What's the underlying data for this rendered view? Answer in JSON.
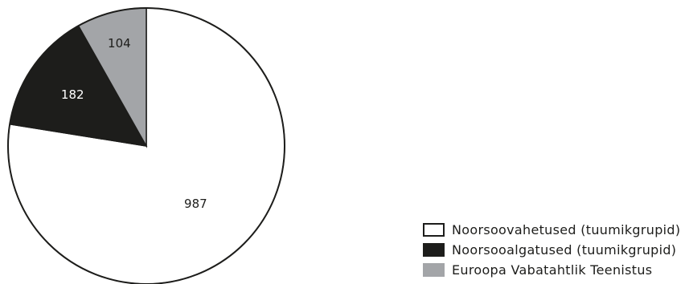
{
  "chart_data": {
    "type": "pie",
    "categories": [
      "Noorsoovahetused (tuumikgrupid)",
      "Noorsooalgatused (tuumikgrupid)",
      "Euroopa Vabatahtlik Teenistus"
    ],
    "values": [
      987,
      182,
      104
    ],
    "colors": [
      "#ffffff",
      "#1d1d1b",
      "#a3a5a8"
    ],
    "legend_position": "bottom-right"
  }
}
